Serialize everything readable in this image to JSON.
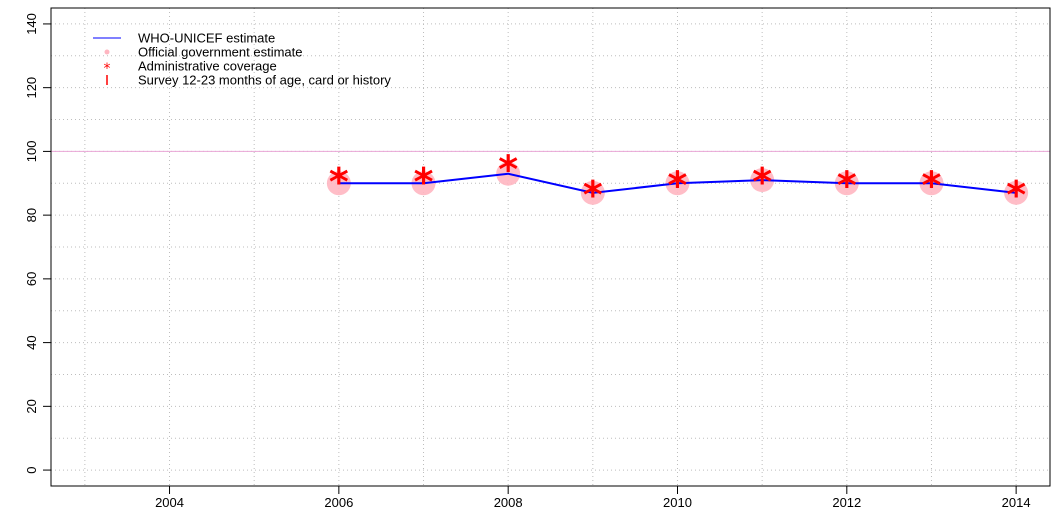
{
  "chart_data": {
    "type": "line",
    "title": "",
    "xlabel": "",
    "ylabel": "",
    "xlim": [
      2002.6,
      2014.4
    ],
    "ylim": [
      -5,
      145
    ],
    "x_ticks": [
      "2004",
      "2006",
      "2008",
      "2010",
      "2012",
      "2014"
    ],
    "y_ticks": [
      "0",
      "20",
      "40",
      "60",
      "80",
      "100",
      "120",
      "140"
    ],
    "grid": true,
    "reference_line": 100,
    "legend_position": "top-left",
    "legend": [
      {
        "label": "WHO-UNICEF estimate",
        "marker": "line",
        "color": "#0000ff"
      },
      {
        "label": "Official government estimate",
        "marker": "circle",
        "color": "#ffb6c1"
      },
      {
        "label": "Administrative coverage",
        "marker": "asterisk",
        "color": "#ff0000"
      },
      {
        "label": "Survey 12-23 months of age, card or history",
        "marker": "bar",
        "color": "#ff0000"
      }
    ],
    "x": [
      2006,
      2007,
      2008,
      2009,
      2010,
      2011,
      2012,
      2013,
      2014
    ],
    "series": [
      {
        "name": "WHO-UNICEF estimate",
        "values": [
          90,
          90,
          93,
          87,
          90,
          91,
          90,
          90,
          87
        ]
      },
      {
        "name": "Official government estimate",
        "values": [
          90,
          90,
          93,
          87,
          90,
          91,
          90,
          90,
          87
        ]
      },
      {
        "name": "Administrative coverage",
        "values": [
          91,
          91,
          95,
          87,
          90,
          91,
          90,
          90,
          87
        ]
      }
    ]
  }
}
